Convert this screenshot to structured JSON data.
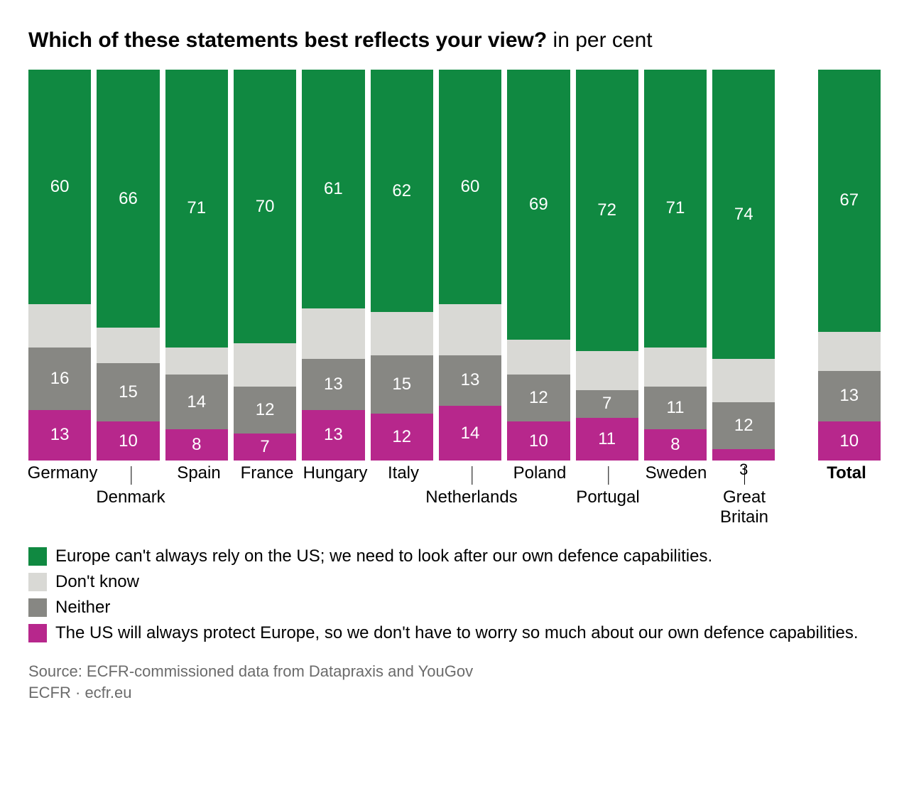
{
  "title_bold": "Which of these statements best reflects your view?",
  "title_rest": " in per cent",
  "chart": {
    "type": "stacked-bar",
    "scale_max": 100,
    "background_color": "#ffffff",
    "value_label_color": "#ffffff",
    "value_label_fontsize": 24,
    "axis_label_fontsize": 24,
    "series": [
      {
        "key": "rely_self",
        "color": "#108941",
        "label": "Europe can't always rely on the US; we need to look after our own defence capabilities."
      },
      {
        "key": "dont_know",
        "color": "#d9d9d5",
        "label": "Don't know"
      },
      {
        "key": "neither",
        "color": "#878783",
        "label": "Neither"
      },
      {
        "key": "us_protect",
        "color": "#b7278c",
        "label": "The US will always protect Europe, so we don't have to worry so much about our own defence capabilities."
      }
    ],
    "categories": [
      {
        "name": "Germany",
        "offset": false,
        "bold": false,
        "values": {
          "rely_self": 60,
          "dont_know": 11,
          "neither": 16,
          "us_protect": 13
        }
      },
      {
        "name": "Denmark",
        "offset": true,
        "bold": false,
        "values": {
          "rely_self": 66,
          "dont_know": 9,
          "neither": 15,
          "us_protect": 10
        }
      },
      {
        "name": "Spain",
        "offset": false,
        "bold": false,
        "values": {
          "rely_self": 71,
          "dont_know": 7,
          "neither": 14,
          "us_protect": 8
        }
      },
      {
        "name": "France",
        "offset": false,
        "bold": false,
        "values": {
          "rely_self": 70,
          "dont_know": 11,
          "neither": 12,
          "us_protect": 7
        }
      },
      {
        "name": "Hungary",
        "offset": false,
        "bold": false,
        "values": {
          "rely_self": 61,
          "dont_know": 13,
          "neither": 13,
          "us_protect": 13
        }
      },
      {
        "name": "Italy",
        "offset": false,
        "bold": false,
        "values": {
          "rely_self": 62,
          "dont_know": 11,
          "neither": 15,
          "us_protect": 12
        }
      },
      {
        "name": "Netherlands",
        "offset": true,
        "bold": false,
        "values": {
          "rely_self": 60,
          "dont_know": 13,
          "neither": 13,
          "us_protect": 14
        }
      },
      {
        "name": "Poland",
        "offset": false,
        "bold": false,
        "values": {
          "rely_self": 69,
          "dont_know": 9,
          "neither": 12,
          "us_protect": 10
        }
      },
      {
        "name": "Portugal",
        "offset": true,
        "bold": false,
        "values": {
          "rely_self": 72,
          "dont_know": 10,
          "neither": 7,
          "us_protect": 11
        }
      },
      {
        "name": "Sweden",
        "offset": false,
        "bold": false,
        "values": {
          "rely_self": 71,
          "dont_know": 10,
          "neither": 11,
          "us_protect": 8
        }
      },
      {
        "name": "Great\nBritain",
        "offset": true,
        "bold": false,
        "values": {
          "rely_self": 74,
          "dont_know": 11,
          "neither": 12,
          "us_protect": 3
        },
        "below_label": "us_protect"
      }
    ],
    "total": {
      "name": "Total",
      "bold": true,
      "values": {
        "rely_self": 67,
        "dont_know": 10,
        "neither": 13,
        "us_protect": 10
      }
    },
    "hide_value_labels_for_series": [
      "dont_know"
    ]
  },
  "source_line1": "Source: ECFR-commissioned data from Datapraxis and YouGov",
  "source_line2": "ECFR · ecfr.eu"
}
